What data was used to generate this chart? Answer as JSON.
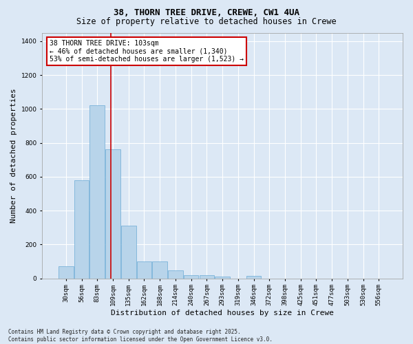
{
  "title1": "38, THORN TREE DRIVE, CREWE, CW1 4UA",
  "title2": "Size of property relative to detached houses in Crewe",
  "xlabel": "Distribution of detached houses by size in Crewe",
  "ylabel": "Number of detached properties",
  "categories": [
    "30sqm",
    "56sqm",
    "83sqm",
    "109sqm",
    "135sqm",
    "162sqm",
    "188sqm",
    "214sqm",
    "240sqm",
    "267sqm",
    "293sqm",
    "319sqm",
    "346sqm",
    "372sqm",
    "398sqm",
    "425sqm",
    "451sqm",
    "477sqm",
    "503sqm",
    "530sqm",
    "556sqm"
  ],
  "values": [
    70,
    580,
    1020,
    760,
    310,
    100,
    100,
    45,
    20,
    18,
    10,
    0,
    15,
    0,
    0,
    0,
    0,
    0,
    0,
    0,
    0
  ],
  "bar_color": "#b8d4ea",
  "bar_edgecolor": "#6aaad4",
  "background_color": "#dce8f5",
  "grid_color": "#ffffff",
  "vline_color": "#cc0000",
  "annotation_text": "38 THORN TREE DRIVE: 103sqm\n← 46% of detached houses are smaller (1,340)\n53% of semi-detached houses are larger (1,523) →",
  "annotation_box_color": "#cc0000",
  "ylim": [
    0,
    1450
  ],
  "yticks": [
    0,
    200,
    400,
    600,
    800,
    1000,
    1200,
    1400
  ],
  "footer": "Contains HM Land Registry data © Crown copyright and database right 2025.\nContains public sector information licensed under the Open Government Licence v3.0.",
  "title_fontsize": 9,
  "subtitle_fontsize": 8.5,
  "tick_fontsize": 6.5,
  "ylabel_fontsize": 8,
  "xlabel_fontsize": 8,
  "annotation_fontsize": 7,
  "footer_fontsize": 5.5
}
